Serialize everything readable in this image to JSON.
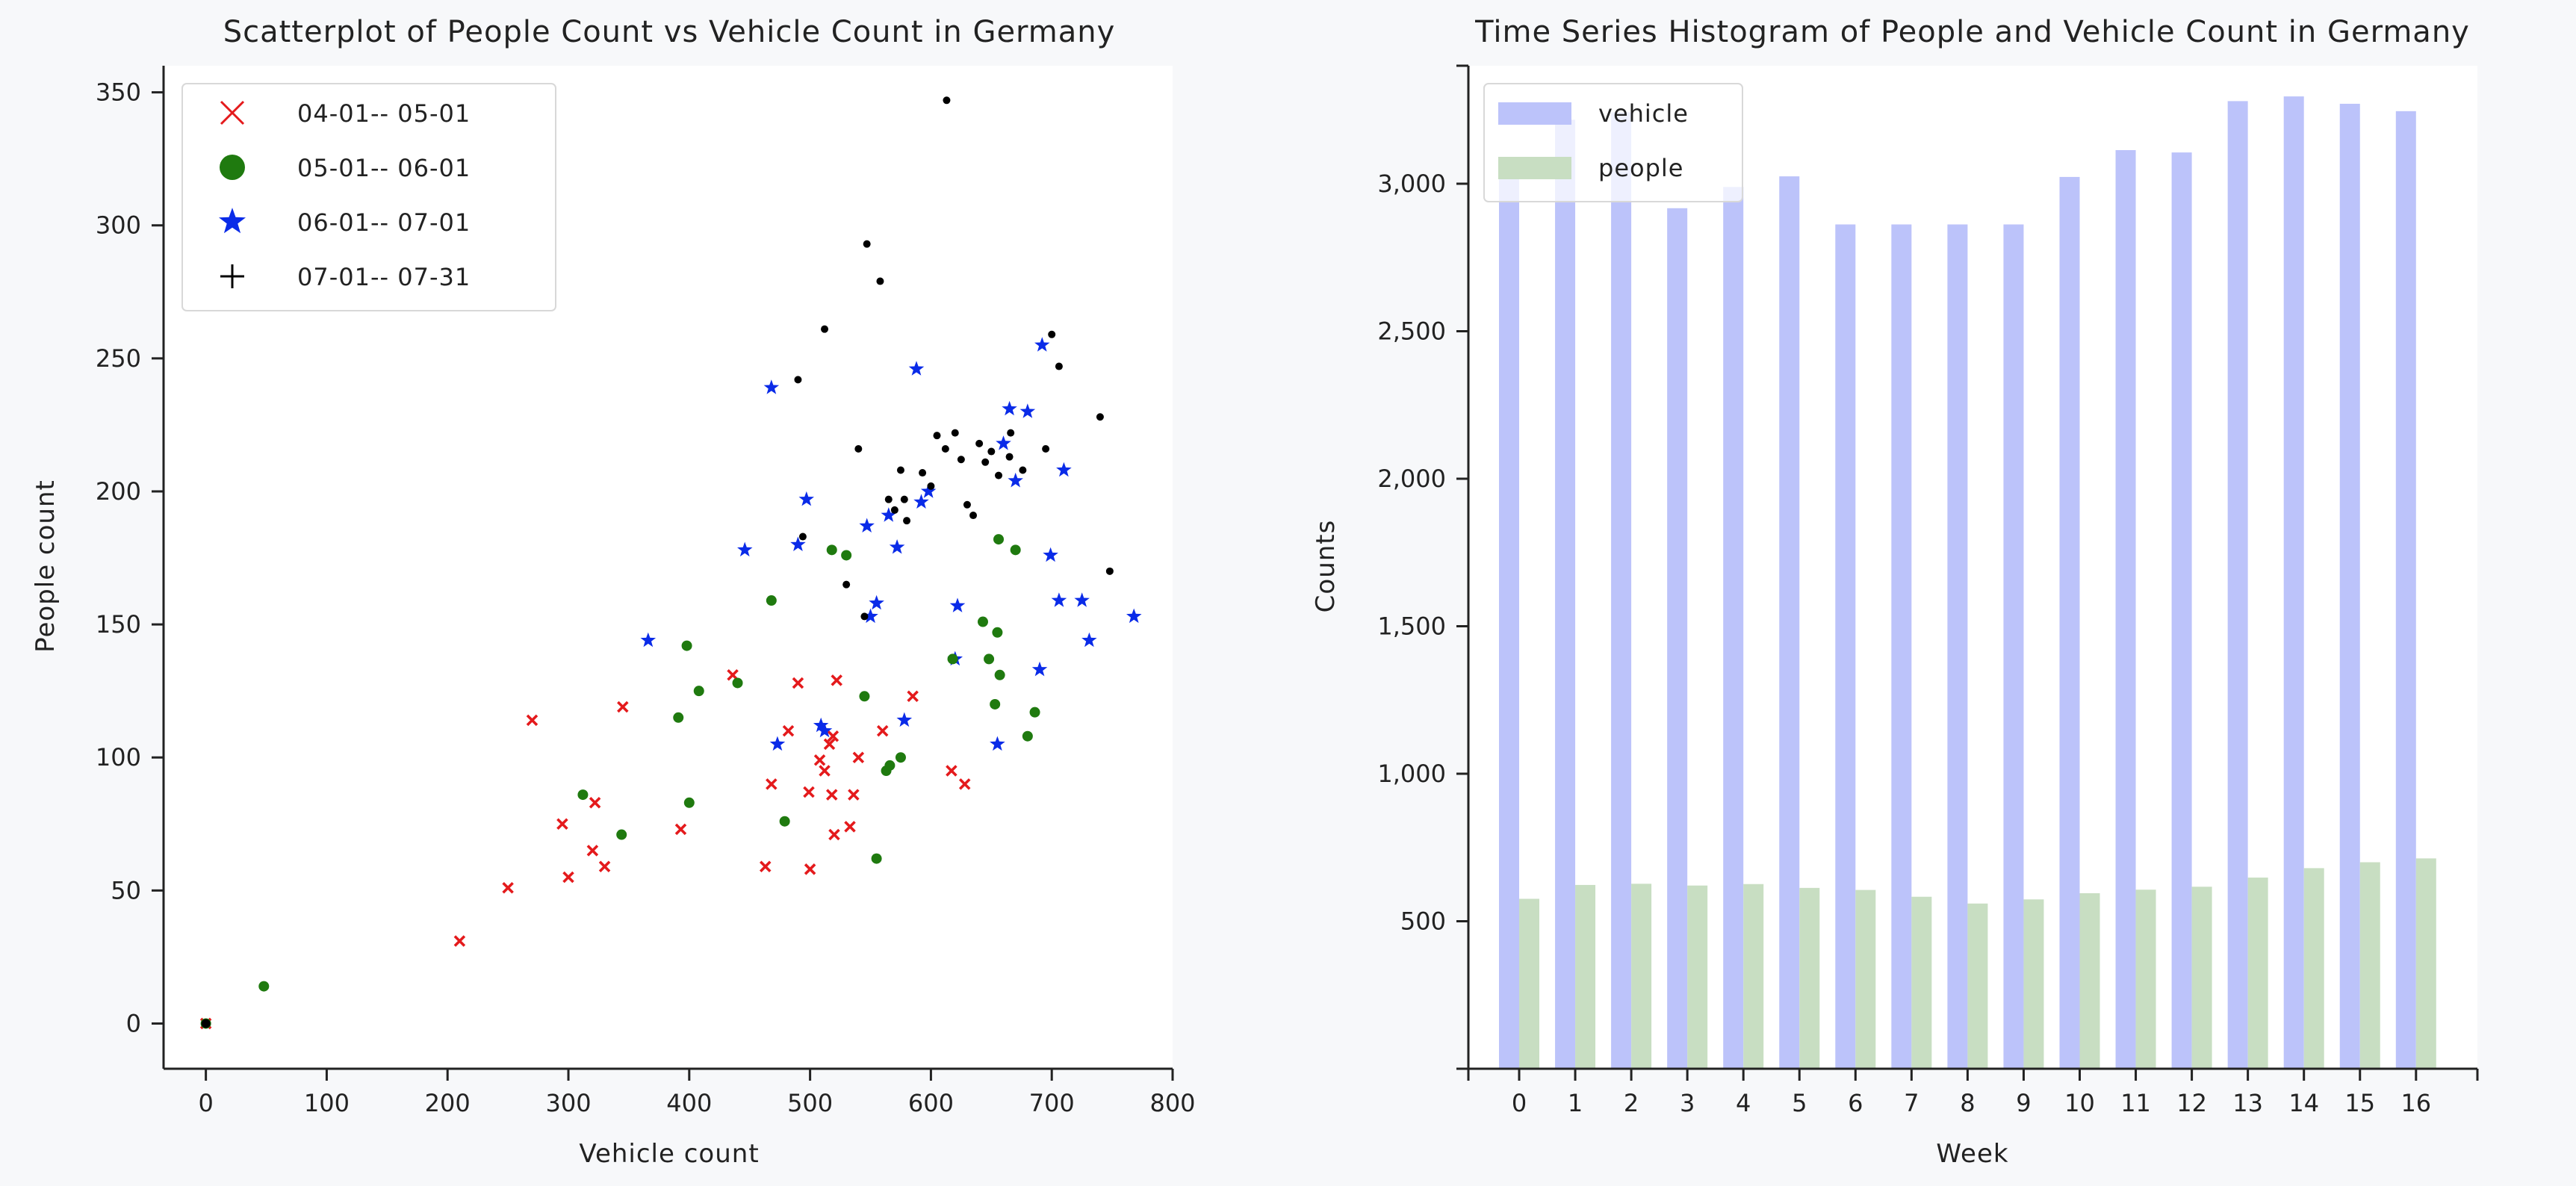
{
  "chart_data": [
    {
      "type": "scatter",
      "title": "Scatterplot of People Count vs Vehicle Count in Germany",
      "xlabel": "Vehicle count",
      "ylabel": "People count",
      "xlim": [
        -35,
        800
      ],
      "ylim": [
        -17,
        360
      ],
      "xticks": [
        0,
        100,
        200,
        300,
        400,
        500,
        600,
        700,
        800
      ],
      "yticks": [
        0,
        50,
        100,
        150,
        200,
        250,
        300,
        350
      ],
      "legend_position": "top-left",
      "grid": false,
      "series": [
        {
          "name": "04-01-- 05-01",
          "marker": "x",
          "color": "#e41a1c",
          "x": [
            0,
            210,
            250,
            270,
            295,
            300,
            320,
            322,
            330,
            345,
            393,
            436,
            463,
            468,
            482,
            490,
            499,
            500,
            508,
            512,
            516,
            518,
            519,
            520,
            522,
            533,
            536,
            540,
            560,
            585,
            617,
            628
          ],
          "y": [
            0,
            31,
            51,
            114,
            75,
            55,
            65,
            83,
            59,
            119,
            73,
            131,
            59,
            90,
            110,
            128,
            87,
            58,
            99,
            95,
            105,
            86,
            108,
            71,
            129,
            74,
            86,
            100,
            110,
            123,
            95,
            90
          ]
        },
        {
          "name": "05-01-- 06-01",
          "marker": "o",
          "color": "#1f7a0f",
          "x": [
            0,
            48,
            312,
            344,
            391,
            398,
            400,
            408,
            440,
            468,
            479,
            518,
            530,
            545,
            555,
            563,
            566,
            575,
            618,
            643,
            648,
            653,
            655,
            656,
            657,
            670,
            680,
            686
          ],
          "y": [
            0,
            14,
            86,
            71,
            115,
            142,
            83,
            125,
            128,
            159,
            76,
            178,
            176,
            123,
            62,
            95,
            97,
            100,
            137,
            151,
            137,
            120,
            147,
            182,
            131,
            178,
            108,
            117
          ],
          "dot_colors": [
            "#000000"
          ]
        },
        {
          "name": "06-01-- 07-01",
          "marker": "*",
          "color": "#0a2be8",
          "x": [
            366,
            446,
            468,
            473,
            490,
            497,
            509,
            512,
            547,
            550,
            555,
            565,
            572,
            578,
            588,
            592,
            598,
            620,
            622,
            655,
            660,
            665,
            670,
            680,
            690,
            692,
            699,
            706,
            710,
            725,
            731,
            768
          ],
          "y": [
            144,
            178,
            239,
            105,
            180,
            197,
            112,
            110,
            187,
            153,
            158,
            191,
            179,
            114,
            246,
            196,
            200,
            137,
            157,
            105,
            218,
            231,
            204,
            230,
            133,
            255,
            176,
            159,
            208,
            159,
            144,
            153
          ]
        },
        {
          "name": "07-01-- 07-31",
          "marker": "+",
          "color": "#000000",
          "x": [
            490,
            494,
            512,
            530,
            540,
            545,
            547,
            558,
            565,
            570,
            575,
            578,
            580,
            593,
            600,
            605,
            612,
            613,
            620,
            625,
            630,
            635,
            640,
            645,
            650,
            656,
            665,
            666,
            676,
            695,
            700,
            706,
            740,
            748
          ],
          "y": [
            242,
            183,
            261,
            165,
            216,
            153,
            293,
            279,
            197,
            193,
            208,
            197,
            189,
            207,
            202,
            221,
            216,
            347,
            222,
            212,
            195,
            191,
            218,
            211,
            215,
            206,
            213,
            222,
            208,
            216,
            259,
            247,
            228,
            170
          ]
        }
      ]
    },
    {
      "type": "bar",
      "title": "Time Series Histogram of People and Vehicle Count in Germany",
      "xlabel": "Week",
      "ylabel": "Counts",
      "categories": [
        "0",
        "1",
        "2",
        "3",
        "4",
        "5",
        "6",
        "7",
        "8",
        "9",
        "10",
        "11",
        "12",
        "13",
        "14",
        "15",
        "16"
      ],
      "ylim": [
        0,
        3400
      ],
      "yticks": [
        500,
        1000,
        1500,
        2000,
        2500,
        3000
      ],
      "ytick_labels": [
        "500",
        "1,000",
        "1,500",
        "2,000",
        "2,500",
        "3,000"
      ],
      "legend_position": "top-left",
      "grid": false,
      "series": [
        {
          "name": "vehicle",
          "color": "#bcc3fa",
          "values": [
            3081,
            3217,
            3242,
            2917,
            2989,
            3025,
            2862,
            2862,
            2862,
            2862,
            3023,
            3114,
            3106,
            3280,
            3296,
            3271,
            3246
          ]
        },
        {
          "name": "people",
          "color": "#c8dec2",
          "values": [
            576,
            623,
            627,
            621,
            626,
            613,
            606,
            583,
            560,
            574,
            595,
            607,
            617,
            648,
            680,
            700,
            713
          ]
        }
      ]
    }
  ]
}
